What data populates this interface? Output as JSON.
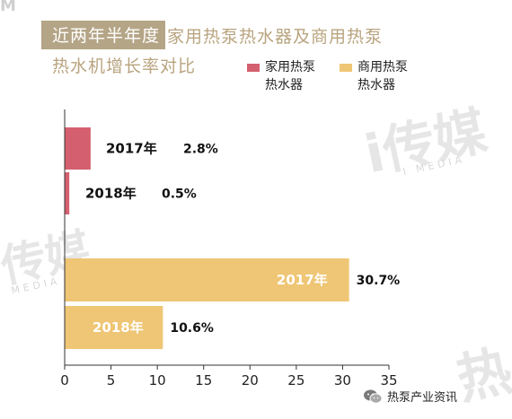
{
  "header": {
    "title_highlight": "近两年半年度",
    "title_rest": "家用热泵热水器及商用热泵",
    "title_line2": "热水机增长率对比"
  },
  "watermarks": {
    "main": "i传媒",
    "sub": "I MEDIA",
    "left": "传媒",
    "left_sub": "MEDIA",
    "corner": "M",
    "bottom": "热"
  },
  "footer": {
    "account_name": "热泵产业资讯"
  },
  "chart_data": {
    "type": "bar",
    "orientation": "horizontal",
    "xlim": [
      0,
      35
    ],
    "xticks": [
      0,
      5,
      10,
      15,
      20,
      25,
      30,
      35
    ],
    "legend_placement": "top-right",
    "series": [
      {
        "name": "家用热泵热水器",
        "color": "#d4606f",
        "bars": [
          {
            "year": "2017年",
            "value": 2.8,
            "value_label": "2.8%"
          },
          {
            "year": "2018年",
            "value": 0.5,
            "value_label": "0.5%"
          }
        ]
      },
      {
        "name": "商用热泵热水器",
        "color": "#efc675",
        "bars": [
          {
            "year": "2017年",
            "value": 30.7,
            "value_label": "30.7%"
          },
          {
            "year": "2018年",
            "value": 10.6,
            "value_label": "10.6%"
          }
        ]
      }
    ]
  }
}
